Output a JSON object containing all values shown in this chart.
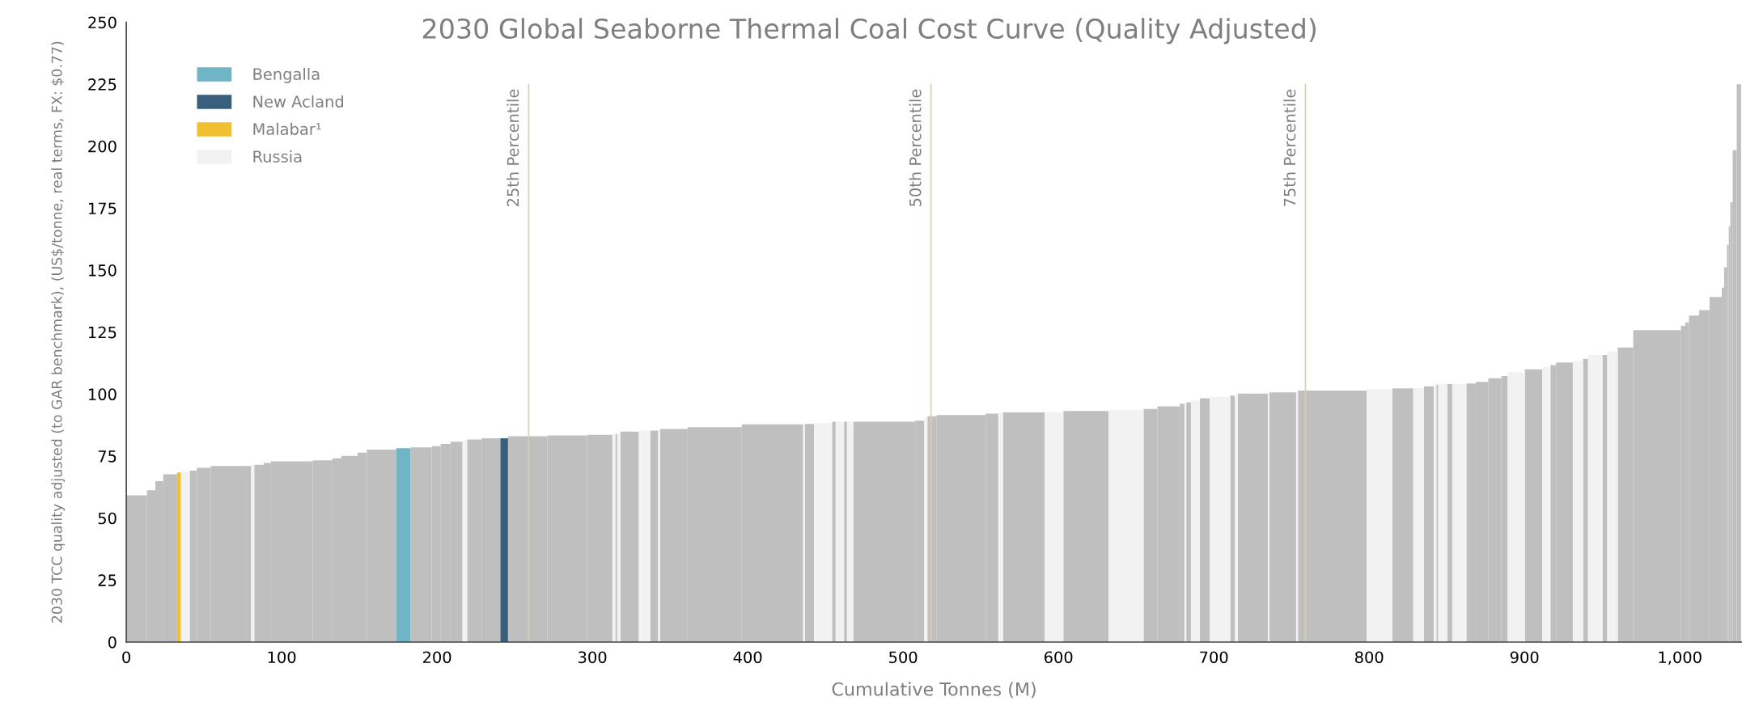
{
  "chart_data": {
    "type": "histogram",
    "title": "2030 Global Seaborne Thermal Coal Cost Curve (Quality Adjusted)",
    "xlabel": "Cumulative Tonnes (M)",
    "ylabel": "2030 TCC quality adjusted (to GAR benchmark), (US$/tonne, real terms, FX: $0.77)",
    "xlim": [
      0,
      1040
    ],
    "ylim": [
      0,
      250
    ],
    "xticks": [
      0,
      100,
      200,
      300,
      400,
      500,
      600,
      700,
      800,
      900,
      {
        "value": 1000,
        "label": "1,000"
      }
    ],
    "yticks": [
      0,
      25,
      50,
      75,
      100,
      125,
      150,
      175,
      200,
      225,
      250
    ],
    "grid": false,
    "legend": "top left",
    "ref_lines": [
      {
        "axis": "x",
        "value": 259,
        "label": "25th Percentile",
        "color": "#d9ceb0"
      },
      {
        "axis": "x",
        "value": 518,
        "label": "50th Percentile",
        "color": "#d9ceb0"
      },
      {
        "axis": "x",
        "value": 759,
        "label": "75th Percentile",
        "color": "#d9ceb0"
      }
    ],
    "bins": [
      0,
      13.3,
      18.7,
      23.8,
      32.7,
      35.2,
      40.8,
      45.4,
      54.3,
      80.3,
      82.4,
      88.5,
      93.1,
      119.9,
      132.7,
      138.5,
      148.9,
      154.8,
      173.8,
      182.9,
      196.6,
      202.4,
      208.7,
      216.4,
      219.4,
      228.7,
      240.8,
      245.7,
      271.1,
      296.6,
      312.9,
      314.8,
      316.0,
      318.0,
      329.9,
      337.3,
      342.4,
      343.6,
      361.3,
      396.2,
      435.7,
      436.9,
      442.7,
      454.3,
      456.6,
      462.0,
      463.9,
      468.0,
      507.8,
      513.6,
      515.7,
      521.7,
      553.2,
      561.3,
      564.3,
      591.1,
      603.2,
      632.3,
      654.8,
      663.7,
      678.1,
      681.1,
      682.3,
      685.3,
      691.1,
      697.4,
      710.6,
      713.6,
      715.5,
      734.8,
      735.8,
      753.0,
      754.2,
      798.5,
      815.0,
      828.4,
      835.3,
      841.6,
      843.3,
      844.5,
      850.4,
      853.5,
      862.6,
      868.6,
      876.7,
      885.1,
      889.2,
      900.2,
      911.4,
      916.7,
      920.3,
      931.1,
      937.7,
      940.9,
      950.2,
      953.3,
      960.0,
      970.0,
      1000.7,
      1003.5,
      1005.9,
      1012.4,
      1019.1,
      1027.0,
      1028.5,
      1030.3,
      1031.5,
      1032.5,
      1034.0,
      1036.6,
      1039.4
    ],
    "series": [
      {
        "color": "#bfbfbf",
        "values": [
          59.2,
          61.2,
          64.9,
          67.7,
          null,
          null,
          69.1,
          70.3,
          71.0,
          null,
          71.5,
          72.2,
          72.9,
          73.3,
          74.1,
          75.1,
          76.4,
          77.6,
          null,
          78.5,
          79.0,
          79.9,
          80.8,
          null,
          81.7,
          82.2,
          null,
          83.0,
          83.3,
          83.6,
          null,
          83.9,
          null,
          84.9,
          null,
          85.3,
          null,
          85.9,
          86.7,
          87.8,
          null,
          88.0,
          null,
          88.9,
          null,
          88.9,
          null,
          88.9,
          89.3,
          null,
          91.1,
          91.6,
          92.1,
          null,
          92.6,
          null,
          93.2,
          null,
          94.0,
          95.1,
          96.1,
          null,
          96.7,
          null,
          98.3,
          null,
          99.4,
          null,
          100.2,
          null,
          100.7,
          null,
          101.4,
          null,
          102.3,
          null,
          103.1,
          null,
          103.8,
          null,
          104.0,
          null,
          104.3,
          104.9,
          106.4,
          107.3,
          null,
          110.0,
          null,
          111.7,
          112.8,
          null,
          114.2,
          null,
          115.8,
          null,
          118.8,
          125.8,
          127.5,
          128.9,
          131.7,
          133.9,
          139.2,
          142.9,
          151.2,
          160.2,
          167.7,
          177.4,
          198.4,
          225
        ]
      },
      {
        "name": "Bengalla",
        "color": "#70b5c6",
        "values": [
          null,
          null,
          null,
          null,
          null,
          null,
          null,
          null,
          null,
          null,
          null,
          null,
          null,
          null,
          null,
          null,
          null,
          null,
          78.2,
          null,
          null,
          null,
          null,
          null,
          null,
          null,
          null,
          null,
          null,
          null,
          null,
          null,
          null,
          null,
          null,
          null,
          null,
          null,
          null,
          null,
          null,
          null,
          null,
          null,
          null,
          null,
          null,
          null,
          null,
          null,
          null,
          null,
          null,
          null,
          null,
          null,
          null,
          null,
          null,
          null,
          null,
          null,
          null,
          null,
          null,
          null,
          null,
          null,
          null,
          null,
          null,
          null,
          null,
          null,
          null,
          null,
          null,
          null,
          null,
          null,
          null,
          null,
          null,
          null,
          null,
          null,
          null,
          null,
          null,
          null,
          null,
          null,
          null,
          null,
          null,
          null,
          null,
          null,
          null,
          null,
          null,
          null,
          null,
          null,
          null,
          null,
          null,
          null,
          null,
          null
        ]
      },
      {
        "name": "New Acland",
        "color": "#3a5f7d",
        "values": [
          null,
          null,
          null,
          null,
          null,
          null,
          null,
          null,
          null,
          null,
          null,
          null,
          null,
          null,
          null,
          null,
          null,
          null,
          null,
          null,
          null,
          null,
          null,
          null,
          null,
          null,
          82.2,
          null,
          null,
          null,
          null,
          null,
          null,
          null,
          null,
          null,
          null,
          null,
          null,
          null,
          null,
          null,
          null,
          null,
          null,
          null,
          null,
          null,
          null,
          null,
          null,
          null,
          null,
          null,
          null,
          null,
          null,
          null,
          null,
          null,
          null,
          null,
          null,
          null,
          null,
          null,
          null,
          null,
          null,
          null,
          null,
          null,
          null,
          null,
          null,
          null,
          null,
          null,
          null,
          null,
          null,
          null,
          null,
          null,
          null,
          null,
          null,
          null,
          null,
          null,
          null,
          null,
          null,
          null,
          null,
          null,
          null,
          null,
          null,
          null,
          null,
          null,
          null,
          null,
          null,
          null,
          null,
          null,
          null,
          null
        ]
      },
      {
        "name": "Malabar¹",
        "color": "#f0c030",
        "values": [
          null,
          null,
          null,
          null,
          68.4,
          null,
          null,
          null,
          null,
          null,
          null,
          null,
          null,
          null,
          null,
          null,
          null,
          null,
          null,
          null,
          null,
          null,
          null,
          null,
          null,
          null,
          null,
          null,
          null,
          null,
          null,
          null,
          null,
          null,
          null,
          null,
          null,
          null,
          null,
          null,
          null,
          null,
          null,
          null,
          null,
          null,
          null,
          null,
          null,
          null,
          null,
          null,
          null,
          null,
          null,
          null,
          null,
          null,
          null,
          null,
          null,
          null,
          null,
          null,
          null,
          null,
          null,
          null,
          null,
          null,
          null,
          null,
          null,
          null,
          null,
          null,
          null,
          null,
          null,
          null,
          null,
          null,
          null,
          null,
          null,
          null,
          null,
          null,
          null,
          null,
          null,
          null,
          null,
          null,
          null,
          null,
          null,
          null,
          null,
          null,
          null,
          null,
          null,
          null,
          null,
          null,
          null,
          null,
          null,
          null
        ]
      },
      {
        "name": "Russia",
        "color": "#f2f2f2",
        "values": [
          null,
          null,
          null,
          null,
          null,
          68.8,
          null,
          null,
          null,
          71.5,
          null,
          null,
          null,
          null,
          null,
          null,
          null,
          null,
          null,
          null,
          null,
          null,
          null,
          81.2,
          null,
          null,
          null,
          null,
          null,
          null,
          83.9,
          null,
          84.0,
          null,
          85.3,
          null,
          85.5,
          null,
          null,
          null,
          88.0,
          null,
          88.3,
          null,
          88.9,
          null,
          88.9,
          null,
          null,
          90.5,
          null,
          null,
          null,
          92.3,
          null,
          92.8,
          null,
          93.6,
          null,
          null,
          null,
          96.4,
          null,
          97.4,
          null,
          98.9,
          null,
          99.6,
          null,
          100.4,
          null,
          101.0,
          null,
          102.0,
          null,
          102.4,
          null,
          103.5,
          null,
          104.0,
          null,
          104.0,
          null,
          null,
          null,
          null,
          108.8,
          null,
          111.0,
          null,
          null,
          113.4,
          null,
          115.8,
          null,
          117.2,
          null,
          null,
          null,
          null,
          null,
          null,
          null,
          null,
          null,
          null,
          null,
          null,
          null,
          null
        ]
      }
    ]
  }
}
